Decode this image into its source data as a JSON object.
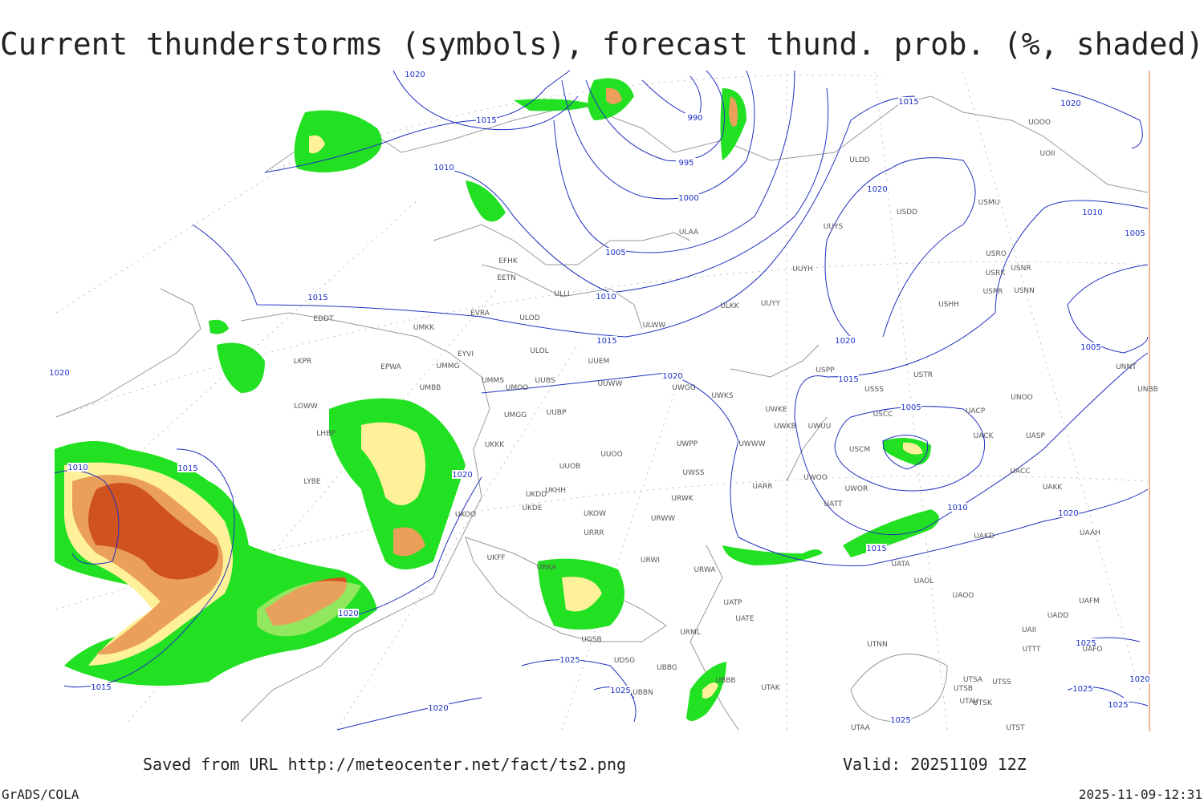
{
  "header": {
    "title": "Current thunderstorms (symbols), forecast thund. prob. (%, shaded)"
  },
  "map": {
    "isobar_labels": [
      "1020",
      "1015",
      "1010",
      "990",
      "995",
      "1000",
      "1005",
      "1010",
      "1015",
      "1015",
      "1020",
      "1015",
      "1020",
      "1020",
      "1015",
      "1020",
      "1010",
      "1005",
      "1005",
      "1005",
      "1010",
      "1020",
      "1015",
      "1020",
      "1020",
      "1025",
      "1025",
      "1020",
      "1025",
      "1025",
      "1025",
      "1025",
      "1020",
      "1010",
      "1015",
      "1015",
      "1020"
    ],
    "stations": [
      "EDDT",
      "LKPR",
      "EPWA",
      "UMMG",
      "EYVI",
      "UMKK",
      "ULOD",
      "ULOL",
      "UUEM",
      "UMMS",
      "UUBS",
      "UUWW",
      "UMOO",
      "UMBB",
      "LOWW",
      "LHBP",
      "UMGG",
      "UUBP",
      "UKKK",
      "UUOO",
      "UUOB",
      "UKHH",
      "UKDD",
      "UKDE",
      "UKOW",
      "UKFF",
      "URRR",
      "URWI",
      "URKA",
      "UWPP",
      "UWSS",
      "URWK",
      "URWW",
      "URWA",
      "UWGG",
      "UWKS",
      "UWKE",
      "UWKB",
      "UWUU",
      "UWWW",
      "UARR",
      "UWOO",
      "UWOR",
      "UATT",
      "USCM",
      "USCC",
      "USSS",
      "USTR",
      "USPP",
      "UACP",
      "UACK",
      "UNOO",
      "UASP",
      "UACC",
      "UAKK",
      "UAKD",
      "UATA",
      "UAOL",
      "UAOO",
      "UAFM",
      "UADD",
      "UAII",
      "UTTT",
      "UAFO",
      "UTSA",
      "UTSS",
      "UTSB",
      "UTAV",
      "UTSK",
      "UTNN",
      "UTAA",
      "UTST",
      "UTAK",
      "UATE",
      "UATP",
      "URML",
      "UGSB",
      "UBBG",
      "UDSG",
      "UBBB",
      "UBBN",
      "ULLI",
      "EFHK",
      "EETN",
      "EVRA",
      "ULAA",
      "ULDD",
      "UUYS",
      "UUYH",
      "ULKK",
      "UUYY",
      "ULWW",
      "USDD",
      "USMU",
      "USRO",
      "USNR",
      "USRK",
      "USRR",
      "USNN",
      "USHH",
      "UOOO",
      "UOII",
      "UNNT",
      "UNBB",
      "UAAH",
      "UKOO",
      "LYBE"
    ]
  },
  "footer": {
    "source": "Saved from URL http://meteocenter.net/fact/ts2.png",
    "valid": "Valid: 20251109 12Z",
    "software": "GrADS/COLA",
    "timestamp": "2025-11-09-12:31"
  }
}
